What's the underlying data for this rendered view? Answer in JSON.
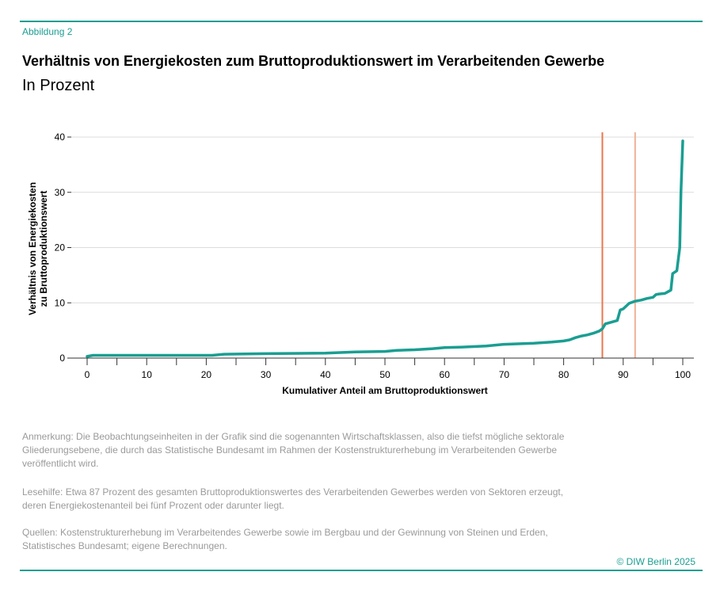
{
  "header": {
    "figure_label": "Abbildung 2",
    "title": "Verhältnis von Energiekosten zum Bruttoproduktionswert im Verarbeitenden Gewerbe",
    "subtitle": "In Prozent"
  },
  "chart_data": {
    "type": "line",
    "xlabel": "Kumulativer Anteil am Bruttoproduktionswert",
    "ylabel": "Verhältnis von Energiekosten zu Bruttoproduktionswert",
    "ylabel_lines": [
      "Verhältnis von Energiekosten",
      "zu Bruttoproduktionswert"
    ],
    "xlim": [
      0,
      100
    ],
    "ylim": [
      0,
      40
    ],
    "x_ticks": [
      0,
      10,
      20,
      30,
      40,
      50,
      60,
      70,
      80,
      90,
      100
    ],
    "x_ticks_minor": [
      5,
      15,
      25,
      35,
      45,
      55,
      65,
      75,
      85,
      95
    ],
    "y_ticks": [
      0,
      10,
      20,
      30,
      40
    ],
    "grid": true,
    "series": [
      {
        "color": "#1a9e92",
        "x": [
          0,
          1,
          5,
          10,
          15,
          20,
          21,
          23,
          30,
          40,
          45,
          50,
          52,
          55,
          58,
          60,
          63,
          67,
          70,
          75,
          78,
          80,
          81,
          82,
          83,
          84,
          85,
          86,
          86.5,
          87,
          88,
          89,
          89.5,
          90,
          91,
          92,
          93,
          94,
          95,
          95.5,
          96,
          97,
          97.5,
          98,
          98.3,
          99,
          99.5,
          99.7,
          100
        ],
        "y": [
          0.3,
          0.5,
          0.5,
          0.5,
          0.5,
          0.5,
          0.5,
          0.7,
          0.8,
          0.9,
          1.1,
          1.2,
          1.4,
          1.5,
          1.7,
          1.9,
          2.0,
          2.2,
          2.5,
          2.7,
          2.9,
          3.1,
          3.3,
          3.7,
          4.0,
          4.2,
          4.5,
          4.9,
          5.3,
          6.2,
          6.5,
          6.8,
          8.7,
          8.9,
          9.9,
          10.3,
          10.5,
          10.8,
          11.0,
          11.5,
          11.6,
          11.7,
          12.0,
          12.3,
          15.3,
          15.8,
          20.0,
          30.0,
          39.3
        ]
      }
    ],
    "markers": [
      {
        "x": 86.5,
        "color": "#e8784c"
      },
      {
        "x": 92.0,
        "color": "#f0b294"
      }
    ]
  },
  "notes": {
    "anmerkung": "Anmerkung: Die Beobachtungseinheiten in der Grafik sind die sogenannten Wirtschaftsklassen, also die tiefst mögliche sektorale Gliederungsebene, die durch das Statistische Bundesamt im Rahmen der Kostenstrukturerhebung im Verarbeitenden Gewerbe veröffentlicht wird.",
    "lesehilfe": "Lesehilfe: Etwa 87 Prozent des gesamten Bruttoproduktionswertes des Verarbeitenden Gewerbes werden von Sektoren erzeugt, deren Energiekostenanteil bei fünf Prozent oder darunter liegt.",
    "quellen": "Quellen: Kostenstrukturerhebung im Verarbeitendes Gewerbe sowie im Bergbau und der Gewinnung von Steinen und Erden, Statistisches Bundesamt; eigene Berechnungen."
  },
  "footer": {
    "copyright": "© DIW Berlin 2025"
  }
}
